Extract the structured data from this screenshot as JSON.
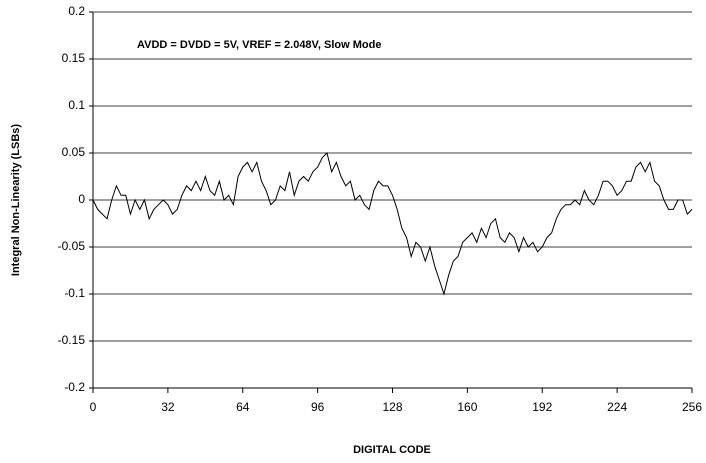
{
  "chart_data": {
    "type": "line",
    "annotation": "AVDD = DVDD = 5V, VREF = 2.048V, Slow Mode",
    "x_label": "DIGITAL CODE",
    "y_label": "Integral Non-Linearity (LSBs)",
    "xlim": [
      0,
      256
    ],
    "xticks": [
      0,
      32,
      64,
      96,
      128,
      160,
      192,
      224,
      256
    ],
    "ylim": [
      -0.2,
      0.2
    ],
    "yticks": [
      0.2,
      0.15,
      0.1,
      0.05,
      0,
      -0.05,
      -0.1,
      -0.15,
      -0.2
    ],
    "grid": true,
    "series": [
      {
        "color": "#000000",
        "x": [
          0,
          2,
          4,
          6,
          8,
          10,
          12,
          14,
          16,
          18,
          20,
          22,
          24,
          26,
          28,
          30,
          32,
          34,
          36,
          38,
          40,
          42,
          44,
          46,
          48,
          50,
          52,
          54,
          56,
          58,
          60,
          62,
          64,
          66,
          68,
          70,
          72,
          74,
          76,
          78,
          80,
          82,
          84,
          86,
          88,
          90,
          92,
          94,
          96,
          98,
          100,
          102,
          104,
          106,
          108,
          110,
          112,
          114,
          116,
          118,
          120,
          122,
          124,
          126,
          128,
          130,
          132,
          134,
          136,
          138,
          140,
          142,
          144,
          146,
          148,
          150,
          152,
          154,
          156,
          158,
          160,
          162,
          164,
          166,
          168,
          170,
          172,
          174,
          176,
          178,
          180,
          182,
          184,
          186,
          188,
          190,
          192,
          194,
          196,
          198,
          200,
          202,
          204,
          206,
          208,
          210,
          212,
          214,
          216,
          218,
          220,
          222,
          224,
          226,
          228,
          230,
          232,
          234,
          236,
          238,
          240,
          242,
          244,
          246,
          248,
          250,
          252,
          254,
          256
        ],
        "values": [
          0,
          -0.01,
          -0.015,
          -0.02,
          0.0,
          0.015,
          0.005,
          0.005,
          -0.015,
          0.0,
          -0.01,
          0.0,
          -0.02,
          -0.01,
          -0.005,
          0.0,
          -0.005,
          -0.015,
          -0.01,
          0.005,
          0.015,
          0.01,
          0.02,
          0.01,
          0.025,
          0.01,
          0.005,
          0.02,
          0.0,
          0.005,
          -0.005,
          0.025,
          0.035,
          0.04,
          0.03,
          0.04,
          0.02,
          0.01,
          -0.005,
          0.0,
          0.015,
          0.01,
          0.03,
          0.005,
          0.02,
          0.025,
          0.02,
          0.03,
          0.035,
          0.045,
          0.05,
          0.03,
          0.04,
          0.025,
          0.015,
          0.02,
          0.0,
          0.005,
          -0.005,
          -0.01,
          0.01,
          0.02,
          0.015,
          0.015,
          0.005,
          -0.01,
          -0.03,
          -0.04,
          -0.06,
          -0.045,
          -0.05,
          -0.065,
          -0.05,
          -0.07,
          -0.085,
          -0.1,
          -0.08,
          -0.065,
          -0.06,
          -0.045,
          -0.04,
          -0.035,
          -0.045,
          -0.03,
          -0.04,
          -0.025,
          -0.02,
          -0.04,
          -0.045,
          -0.035,
          -0.04,
          -0.055,
          -0.04,
          -0.05,
          -0.045,
          -0.055,
          -0.05,
          -0.04,
          -0.035,
          -0.02,
          -0.01,
          -0.005,
          -0.005,
          0.0,
          -0.005,
          0.01,
          0.0,
          -0.005,
          0.005,
          0.02,
          0.02,
          0.015,
          0.005,
          0.01,
          0.02,
          0.02,
          0.035,
          0.04,
          0.03,
          0.04,
          0.02,
          0.015,
          0.0,
          -0.01,
          -0.01,
          0.0,
          0.0,
          -0.015,
          -0.01
        ]
      }
    ]
  }
}
